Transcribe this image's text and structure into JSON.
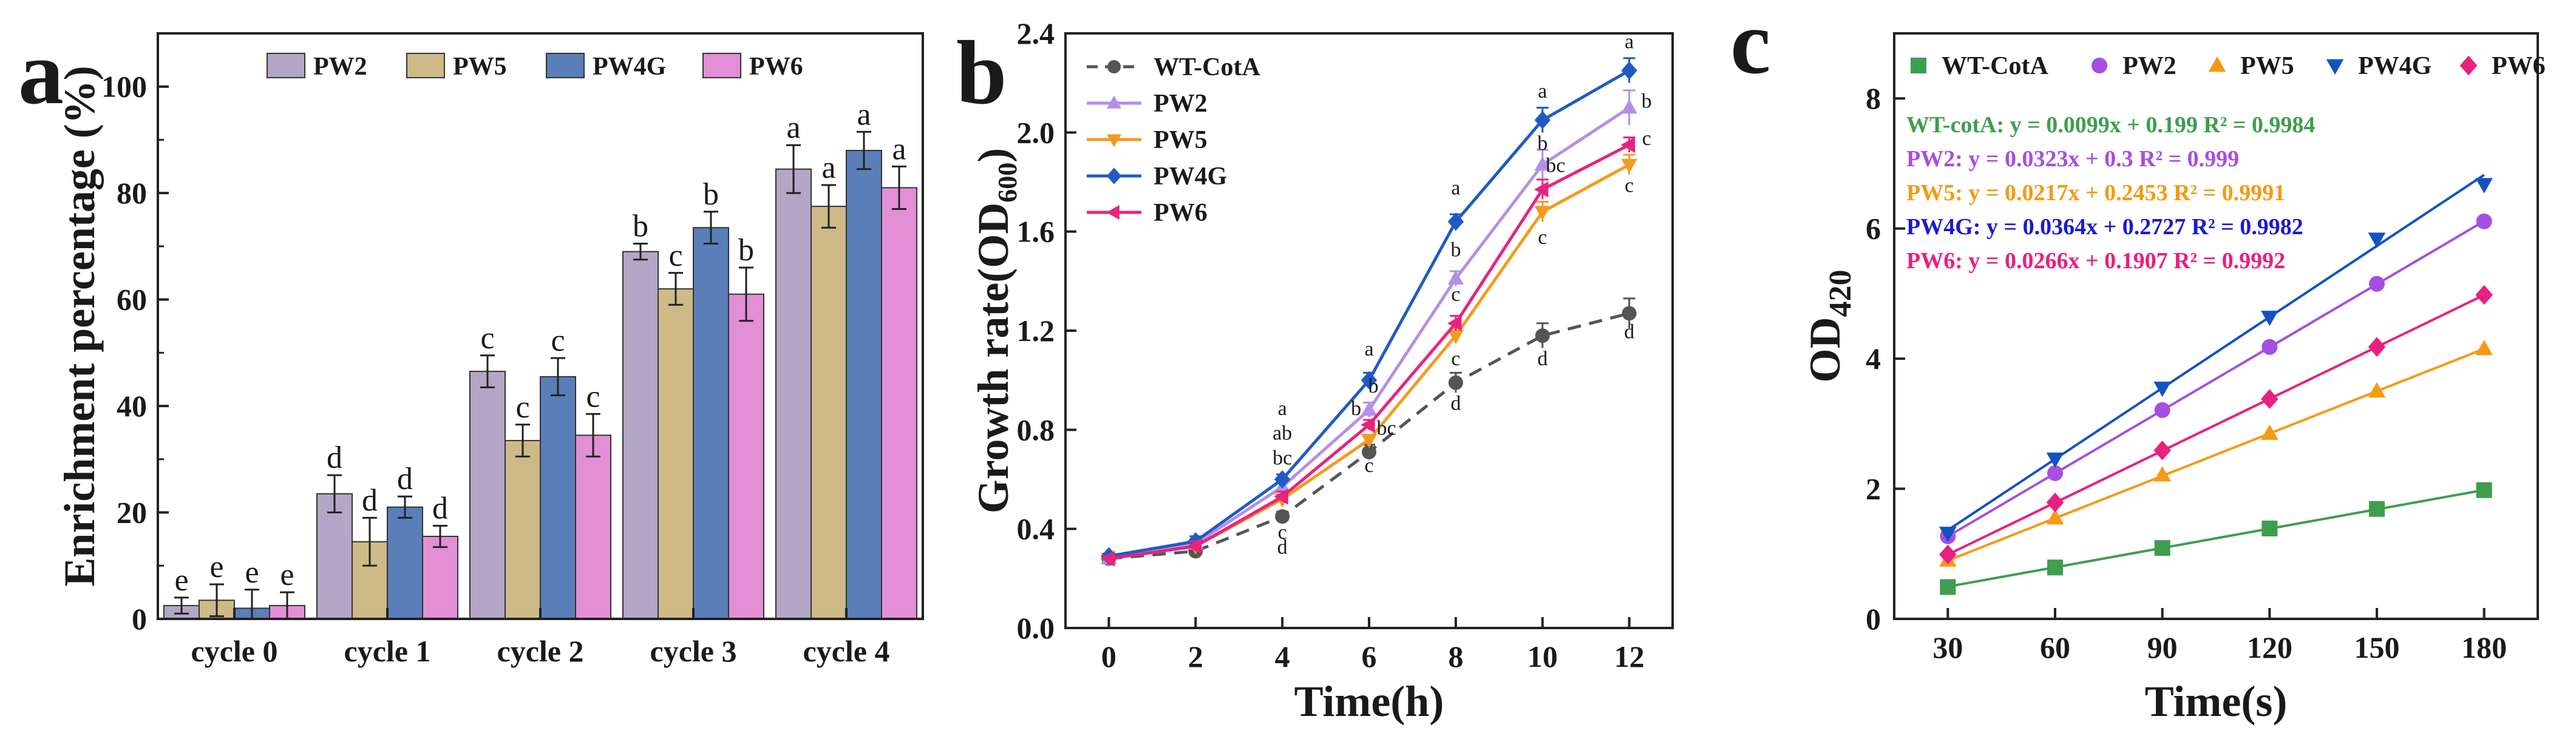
{
  "figure_labels": {
    "a": "a",
    "b": "b",
    "c": "c"
  },
  "chart_data": [
    {
      "id": "a",
      "type": "bar",
      "title": "",
      "xlabel": "",
      "ylabel": "Enrichment percentage (%)",
      "ylim": [
        0,
        110
      ],
      "yticks": [
        0,
        20,
        40,
        60,
        80,
        100
      ],
      "categories": [
        "cycle 0",
        "cycle 1",
        "cycle 2",
        "cycle 3",
        "cycle 4"
      ],
      "legend_position": "top",
      "series": [
        {
          "name": "PW2",
          "color": "#b3a6c6",
          "values": [
            2.5,
            23.5,
            46.5,
            69.0,
            84.5
          ],
          "errors": [
            1.5,
            3.5,
            3.0,
            1.5,
            4.5
          ],
          "labels": [
            "e",
            "d",
            "c",
            "b",
            "a"
          ]
        },
        {
          "name": "PW5",
          "color": "#cdba86",
          "values": [
            3.5,
            14.5,
            33.5,
            62.0,
            77.5
          ],
          "errors": [
            3.0,
            4.5,
            3.0,
            3.0,
            4.0
          ],
          "labels": [
            "e",
            "d",
            "c",
            "c",
            "a"
          ]
        },
        {
          "name": "PW4G",
          "color": "#5a7fb8",
          "values": [
            2.0,
            21.0,
            45.5,
            73.5,
            88.0
          ],
          "errors": [
            3.5,
            2.0,
            3.5,
            3.0,
            3.5
          ],
          "labels": [
            "e",
            "d",
            "c",
            "b",
            "a"
          ]
        },
        {
          "name": "PW6",
          "color": "#e28fd6",
          "values": [
            2.5,
            15.5,
            34.5,
            61.0,
            81.0
          ],
          "errors": [
            2.5,
            2.0,
            4.0,
            5.0,
            4.0
          ],
          "labels": [
            "e",
            "d",
            "c",
            "b",
            "a"
          ]
        }
      ]
    },
    {
      "id": "b",
      "type": "line",
      "title": "",
      "xlabel": "Time(h)",
      "ylabel": "Growth rate(OD",
      "ylabel_sub": "600",
      "ylabel_close": ")",
      "xlim": [
        -1,
        13
      ],
      "ylim": [
        0,
        2.4
      ],
      "xticks": [
        0,
        2,
        4,
        6,
        8,
        10,
        12
      ],
      "yticks": [
        0.0,
        0.4,
        0.8,
        1.2,
        1.6,
        2.0,
        2.4
      ],
      "ytick_labels": [
        "0.0",
        "0.4",
        "0.8",
        "1.2",
        "1.6",
        "2.0",
        "2.4"
      ],
      "x": [
        0,
        2,
        4,
        6,
        8,
        10,
        12
      ],
      "legend_position": "top-left",
      "series": [
        {
          "name": "WT-CotA",
          "color": "#555555",
          "marker": "circle",
          "dashed": true,
          "values": [
            0.28,
            0.31,
            0.45,
            0.71,
            0.99,
            1.18,
            1.27
          ],
          "errors": [
            0.01,
            0.02,
            0.02,
            0.03,
            0.04,
            0.05,
            0.06
          ]
        },
        {
          "name": "PW2",
          "color": "#b58ee8",
          "marker": "triangle-up",
          "dashed": false,
          "values": [
            0.28,
            0.34,
            0.57,
            0.88,
            1.41,
            1.87,
            2.1
          ],
          "errors": [
            0.01,
            0.02,
            0.02,
            0.03,
            0.03,
            0.06,
            0.07
          ]
        },
        {
          "name": "PW5",
          "color": "#f39b1d",
          "marker": "triangle-down",
          "dashed": false,
          "values": [
            0.28,
            0.33,
            0.52,
            0.76,
            1.18,
            1.68,
            1.87
          ],
          "errors": [
            0.01,
            0.02,
            0.02,
            0.02,
            0.03,
            0.04,
            0.04
          ]
        },
        {
          "name": "PW4G",
          "color": "#1f5bc4",
          "marker": "diamond",
          "dashed": false,
          "values": [
            0.29,
            0.35,
            0.6,
            1.0,
            1.64,
            2.05,
            2.25
          ],
          "errors": [
            0.01,
            0.02,
            0.02,
            0.03,
            0.03,
            0.05,
            0.05
          ]
        },
        {
          "name": "PW6",
          "color": "#e8237f",
          "marker": "left-triangle",
          "dashed": false,
          "values": [
            0.28,
            0.33,
            0.53,
            0.82,
            1.23,
            1.77,
            1.95
          ],
          "errors": [
            0.01,
            0.02,
            0.02,
            0.02,
            0.03,
            0.04,
            0.03
          ]
        }
      ],
      "annotations": [
        {
          "x": 4,
          "y": 0.86,
          "text": "a",
          "size": "small"
        },
        {
          "x": 4,
          "y": 0.76,
          "text": "ab",
          "size": "small"
        },
        {
          "x": 4,
          "y": 0.66,
          "text": "bc",
          "size": "small"
        },
        {
          "x": 4,
          "y": 0.36,
          "text": "c",
          "size": "small"
        },
        {
          "x": 4,
          "y": 0.3,
          "text": "d",
          "size": "small"
        },
        {
          "x": 6,
          "y": 1.1,
          "text": "a",
          "size": "small"
        },
        {
          "x": 6.1,
          "y": 0.95,
          "text": "b",
          "size": "small"
        },
        {
          "x": 5.7,
          "y": 0.86,
          "text": "b",
          "size": "small"
        },
        {
          "x": 6.4,
          "y": 0.78,
          "text": "bc",
          "size": "small"
        },
        {
          "x": 6,
          "y": 0.63,
          "text": "c",
          "size": "small"
        },
        {
          "x": 8,
          "y": 1.75,
          "text": "a",
          "size": "small"
        },
        {
          "x": 8,
          "y": 1.5,
          "text": "b",
          "size": "small"
        },
        {
          "x": 8,
          "y": 1.32,
          "text": "c",
          "size": "small"
        },
        {
          "x": 8,
          "y": 1.06,
          "text": "c",
          "size": "small"
        },
        {
          "x": 8,
          "y": 0.88,
          "text": "d",
          "size": "small"
        },
        {
          "x": 10,
          "y": 2.14,
          "text": "a",
          "size": "small"
        },
        {
          "x": 10,
          "y": 1.93,
          "text": "b",
          "size": "small"
        },
        {
          "x": 10.3,
          "y": 1.84,
          "text": "bc",
          "size": "small"
        },
        {
          "x": 10,
          "y": 1.55,
          "text": "c",
          "size": "small"
        },
        {
          "x": 10,
          "y": 1.06,
          "text": "d",
          "size": "small"
        },
        {
          "x": 12,
          "y": 2.34,
          "text": "a",
          "size": "small"
        },
        {
          "x": 12.4,
          "y": 2.1,
          "text": "b",
          "size": "small"
        },
        {
          "x": 12.4,
          "y": 1.95,
          "text": "c",
          "size": "small"
        },
        {
          "x": 12,
          "y": 1.76,
          "text": "c",
          "size": "small"
        },
        {
          "x": 12,
          "y": 1.17,
          "text": "d",
          "size": "small"
        }
      ]
    },
    {
      "id": "c",
      "type": "scatter",
      "title": "",
      "xlabel": "Time(s)",
      "ylabel": "OD",
      "ylabel_sub": "420",
      "xlim": [
        15,
        195
      ],
      "ylim": [
        0,
        9
      ],
      "xticks": [
        30,
        60,
        90,
        120,
        150,
        180
      ],
      "yticks": [
        0,
        2,
        4,
        6,
        8
      ],
      "x": [
        30,
        60,
        90,
        120,
        150,
        180
      ],
      "legend_position": "top",
      "series": [
        {
          "name": "WT-CotA",
          "color": "#3f9e4d",
          "marker": "square",
          "values": [
            0.49,
            0.79,
            1.09,
            1.39,
            1.69,
            1.98
          ],
          "fit": {
            "slope": 0.0099,
            "intercept": 0.199
          },
          "equation": "WT-cotA: y = 0.0099x + 0.199  R² = 0.9984"
        },
        {
          "name": "PW2",
          "color": "#a64fe0",
          "marker": "circle",
          "values": [
            1.27,
            2.24,
            3.21,
            4.18,
            5.15,
            6.11
          ],
          "fit": {
            "slope": 0.0323,
            "intercept": 0.3
          },
          "equation": "PW2: y = 0.0323x + 0.3  R² = 0.999"
        },
        {
          "name": "PW5",
          "color": "#f59a12",
          "marker": "triangle-up",
          "values": [
            0.9,
            1.55,
            2.21,
            2.85,
            3.5,
            4.15
          ],
          "fit": {
            "slope": 0.0217,
            "intercept": 0.2453
          },
          "equation": "PW5: y = 0.0217x + 0.2453  R² = 0.9991"
        },
        {
          "name": "PW4G",
          "color": "#1253c0",
          "marker": "triangle-down",
          "values": [
            1.32,
            2.46,
            3.55,
            4.64,
            5.84,
            6.68
          ],
          "fit": {
            "slope": 0.0364,
            "intercept": 0.2727
          },
          "equation": "PW4G: y = 0.0364x + 0.2727  R² = 0.9982"
        },
        {
          "name": "PW6",
          "color": "#e8207f",
          "marker": "diamond",
          "values": [
            0.99,
            1.79,
            2.59,
            3.38,
            4.18,
            4.98
          ],
          "fit": {
            "slope": 0.0266,
            "intercept": 0.1907
          },
          "equation": "PW6: y = 0.0266x + 0.1907  R² = 0.9992"
        }
      ],
      "equation_colors": [
        "#3f9e4d",
        "#a64fe0",
        "#f59a12",
        "#1a1ad0",
        "#e8207f"
      ]
    }
  ]
}
